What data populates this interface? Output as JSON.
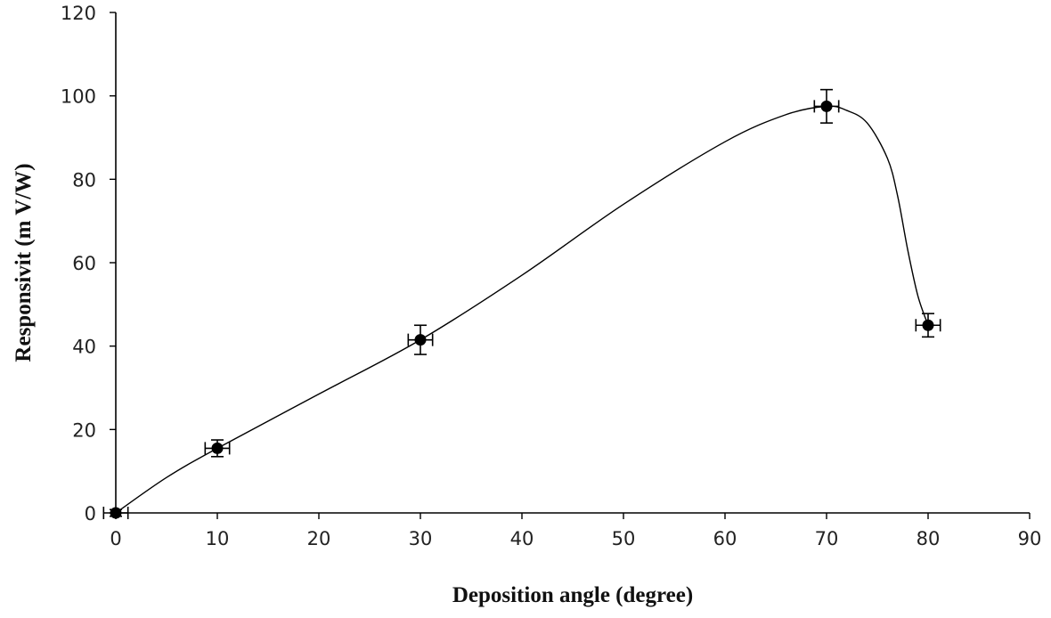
{
  "chart_data": {
    "type": "scatter",
    "title": "",
    "xlabel": "Deposition angle (degree)",
    "ylabel": "Responsivit (m V/W)",
    "xlim": [
      0,
      90
    ],
    "ylim": [
      0,
      120
    ],
    "x_ticks": [
      0,
      10,
      20,
      30,
      40,
      50,
      60,
      70,
      80,
      90
    ],
    "y_ticks": [
      0,
      20,
      40,
      60,
      80,
      100,
      120
    ],
    "grid": false,
    "legend": "none",
    "smooth_line": true,
    "series": [
      {
        "points": [
          {
            "x": 0,
            "y": 0,
            "xerr": 1.2,
            "yerr": 0.8
          },
          {
            "x": 10,
            "y": 15.5,
            "xerr": 1.2,
            "yerr": 2.0
          },
          {
            "x": 30,
            "y": 41.5,
            "xerr": 1.2,
            "yerr": 3.5
          },
          {
            "x": 70,
            "y": 97.5,
            "xerr": 1.2,
            "yerr": 4.0
          },
          {
            "x": 80,
            "y": 45,
            "xerr": 1.2,
            "yerr": 2.8
          }
        ],
        "curve": [
          [
            0,
            0
          ],
          [
            5,
            8.5
          ],
          [
            10,
            15.5
          ],
          [
            20,
            28.5
          ],
          [
            30,
            41.5
          ],
          [
            40,
            57
          ],
          [
            50,
            74
          ],
          [
            60,
            89
          ],
          [
            66,
            95.5
          ],
          [
            70,
            97.5
          ],
          [
            72,
            96.5
          ],
          [
            74,
            93.5
          ],
          [
            76,
            85
          ],
          [
            77,
            76
          ],
          [
            78,
            63
          ],
          [
            79,
            52
          ],
          [
            80,
            45
          ]
        ]
      }
    ]
  }
}
